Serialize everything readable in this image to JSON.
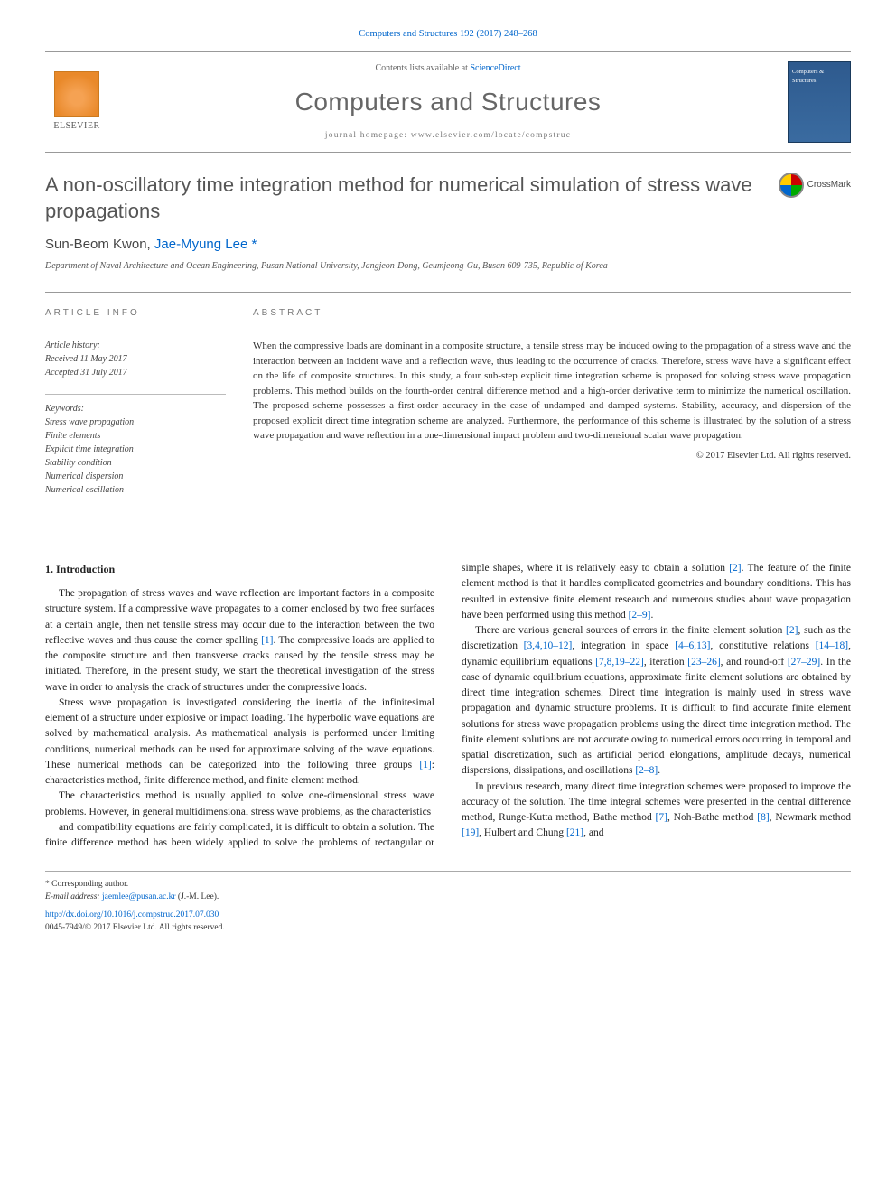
{
  "header": {
    "citation": "Computers and Structures 192 (2017) 248–268",
    "contents_label": "Contents lists available at",
    "contents_link": "ScienceDirect",
    "journal_name": "Computers and Structures",
    "homepage_label": "journal homepage:",
    "homepage_url": "www.elsevier.com/locate/compstruc",
    "publisher": "ELSEVIER",
    "cover_label": "Computers & Structures"
  },
  "article": {
    "title": "A non-oscillatory time integration method for numerical simulation of stress wave propagations",
    "crossmark": "CrossMark",
    "authors_plain": "Sun-Beom Kwon, Jae-Myung Lee",
    "author1": "Sun-Beom Kwon, ",
    "author2": "Jae-Myung Lee",
    "corr_mark": "*",
    "affiliation": "Department of Naval Architecture and Ocean Engineering, Pusan National University, Jangjeon-Dong, Geumjeong-Gu, Busan 609-735, Republic of Korea"
  },
  "info": {
    "heading": "article info",
    "history_label": "Article history:",
    "received": "Received 11 May 2017",
    "accepted": "Accepted 31 July 2017",
    "keywords_label": "Keywords:",
    "keywords": [
      "Stress wave propagation",
      "Finite elements",
      "Explicit time integration",
      "Stability condition",
      "Numerical dispersion",
      "Numerical oscillation"
    ]
  },
  "abstract": {
    "heading": "abstract",
    "text": "When the compressive loads are dominant in a composite structure, a tensile stress may be induced owing to the propagation of a stress wave and the interaction between an incident wave and a reflection wave, thus leading to the occurrence of cracks. Therefore, stress wave have a significant effect on the life of composite structures. In this study, a four sub-step explicit time integration scheme is proposed for solving stress wave propagation problems. This method builds on the fourth-order central difference method and a high-order derivative term to minimize the numerical oscillation. The proposed scheme possesses a first-order accuracy in the case of undamped and damped systems. Stability, accuracy, and dispersion of the proposed explicit direct time integration scheme are analyzed. Furthermore, the performance of this scheme is illustrated by the solution of a stress wave propagation and wave reflection in a one-dimensional impact problem and two-dimensional scalar wave propagation.",
    "copyright": "© 2017 Elsevier Ltd. All rights reserved."
  },
  "body": {
    "section1_heading": "1. Introduction",
    "p1": "The propagation of stress waves and wave reflection are important factors in a composite structure system. If a compressive wave propagates to a corner enclosed by two free surfaces at a certain angle, then net tensile stress may occur due to the interaction between the two reflective waves and thus cause the corner spalling ",
    "p1_ref": "[1]",
    "p1b": ". The compressive loads are applied to the composite structure and then transverse cracks caused by the tensile stress may be initiated. Therefore, in the present study, we start the theoretical investigation of the stress wave in order to analysis the crack of structures under the compressive loads.",
    "p2": "Stress wave propagation is investigated considering the inertia of the infinitesimal element of a structure under explosive or impact loading. The hyperbolic wave equations are solved by mathematical analysis. As mathematical analysis is performed under limiting conditions, numerical methods can be used for approximate solving of the wave equations. These numerical methods can be categorized into the following three groups ",
    "p2_ref": "[1]",
    "p2b": ": characteristics method, finite difference method, and finite element method.",
    "p3": "The characteristics method is usually applied to solve one-dimensional stress wave problems. However, in general multidimensional stress wave problems, as the characteristics",
    "p4a": "and compatibility equations are fairly complicated, it is difficult to obtain a solution. The finite difference method has been widely applied to solve the problems of rectangular or simple shapes, where it is relatively easy to obtain a solution ",
    "p4_ref1": "[2]",
    "p4b": ". The feature of the finite element method is that it handles complicated geometries and boundary conditions. This has resulted in extensive finite element research and numerous studies about wave propagation have been performed using this method ",
    "p4_ref2": "[2–9]",
    "p4c": ".",
    "p5a": "There are various general sources of errors in the finite element solution ",
    "p5_ref1": "[2]",
    "p5b": ", such as the discretization ",
    "p5_ref2": "[3,4,10–12]",
    "p5c": ", integration in space ",
    "p5_ref3": "[4–6,13]",
    "p5d": ", constitutive relations ",
    "p5_ref4": "[14–18]",
    "p5e": ", dynamic equilibrium equations ",
    "p5_ref5": "[7,8,19–22]",
    "p5f": ", iteration ",
    "p5_ref6": "[23–26]",
    "p5g": ", and round-off ",
    "p5_ref7": "[27–29]",
    "p5h": ". In the case of dynamic equilibrium equations, approximate finite element solutions are obtained by direct time integration schemes. Direct time integration is mainly used in stress wave propagation and dynamic structure problems. It is difficult to find accurate finite element solutions for stress wave propagation problems using the direct time integration method. The finite element solutions are not accurate owing to numerical errors occurring in temporal and spatial discretization, such as artificial period elongations, amplitude decays, numerical dispersions, dissipations, and oscillations ",
    "p5_ref8": "[2–8]",
    "p5i": ".",
    "p6a": "In previous research, many direct time integration schemes were proposed to improve the accuracy of the solution. The time integral schemes were presented in the central difference method, Runge-Kutta method, Bathe method ",
    "p6_ref1": "[7]",
    "p6b": ", Noh-Bathe method ",
    "p6_ref2": "[8]",
    "p6c": ", Newmark method ",
    "p6_ref3": "[19]",
    "p6d": ", Hulbert and Chung ",
    "p6_ref4": "[21]",
    "p6e": ", and"
  },
  "footer": {
    "corr_label": "* Corresponding author.",
    "email_label": "E-mail address:",
    "email": "jaemlee@pusan.ac.kr",
    "email_name": "(J.-M. Lee).",
    "doi": "http://dx.doi.org/10.1016/j.compstruc.2017.07.030",
    "issn": "0045-7949/© 2017 Elsevier Ltd. All rights reserved."
  },
  "colors": {
    "link": "#0066cc",
    "rule": "#999999",
    "text": "#333333",
    "muted": "#666666"
  }
}
